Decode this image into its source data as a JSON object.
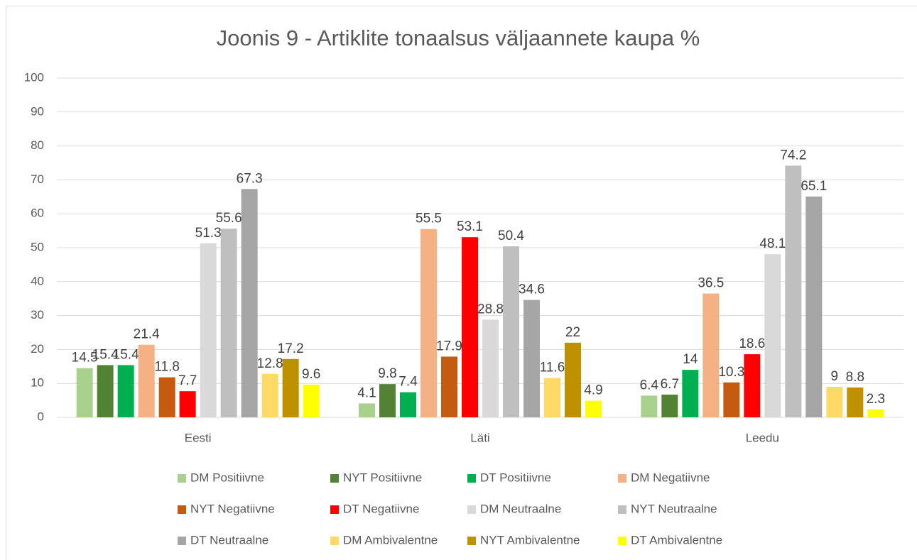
{
  "chart_data": {
    "type": "bar",
    "title": "Joonis 9 - Artiklite tonaalsus väljaannete kaupa %",
    "categories": [
      "Eesti",
      "Läti",
      "Leedu"
    ],
    "series": [
      {
        "name": "DM Positiivne",
        "color": "#a9d18e",
        "values": [
          14.5,
          4.1,
          6.4
        ]
      },
      {
        "name": "NYT Positiivne",
        "color": "#548235",
        "values": [
          15.4,
          9.8,
          6.7
        ]
      },
      {
        "name": "DT Positiivne",
        "color": "#00b050",
        "values": [
          15.4,
          7.4,
          14
        ]
      },
      {
        "name": "DM Negatiivne",
        "color": "#f4b183",
        "values": [
          21.4,
          55.5,
          36.5
        ]
      },
      {
        "name": "NYT Negatiivne",
        "color": "#c55a11",
        "values": [
          11.8,
          17.9,
          10.3
        ]
      },
      {
        "name": "DT Negatiivne",
        "color": "#ff0000",
        "values": [
          7.7,
          53.1,
          18.6
        ]
      },
      {
        "name": "DM Neutraalne",
        "color": "#d9d9d9",
        "values": [
          51.3,
          28.8,
          48.1
        ]
      },
      {
        "name": "NYT Neutraalne",
        "color": "#bfbfbf",
        "values": [
          55.6,
          50.4,
          74.2
        ]
      },
      {
        "name": "DT Neutraalne",
        "color": "#a5a5a5",
        "values": [
          67.3,
          34.6,
          65.1
        ]
      },
      {
        "name": "DM Ambivalentne",
        "color": "#ffd966",
        "values": [
          12.8,
          11.6,
          9
        ]
      },
      {
        "name": "NYT Ambivalentne",
        "color": "#bf9000",
        "values": [
          17.2,
          22,
          8.8
        ]
      },
      {
        "name": "DT Ambivalentne",
        "color": "#ffff00",
        "values": [
          9.6,
          4.9,
          2.3
        ]
      }
    ],
    "ylim": [
      0,
      100
    ],
    "yticks": [
      0,
      10,
      20,
      30,
      40,
      50,
      60,
      70,
      80,
      90,
      100
    ],
    "grid": true,
    "legend": "bottom"
  }
}
